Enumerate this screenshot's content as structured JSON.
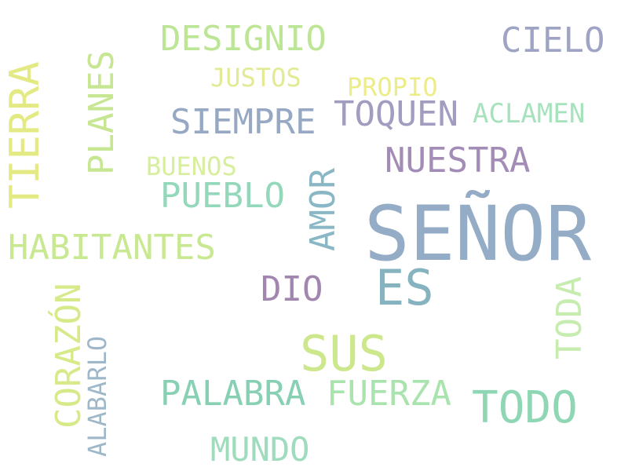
{
  "words": {
    "senor": "SEÑOR",
    "sus": "SUS",
    "es": "ES",
    "tierra": "TIERRA",
    "todo": "TODO",
    "designio": "DESIGNIO",
    "cielo": "CIELO",
    "siempre": "SIEMPRE",
    "toquen": "TOQUEN",
    "nuestra": "NUESTRA",
    "habitantes": "HABITANTES",
    "pueblo": "PUEBLO",
    "palabra": "PALABRA",
    "fuerza": "FUERZA",
    "dio": "DIO",
    "planes": "PLANES",
    "amor": "AMOR",
    "corazon": "CORAZÓN",
    "toda": "TODA",
    "mundo": "MUNDO",
    "aclamen": "ACLAMEN",
    "justos": "JUSTOS",
    "propio": "PROPIO",
    "buenos": "BUENOS",
    "alabarlo": "ALABARLO"
  },
  "colors": {
    "blue_gray": "#8fa8c2",
    "steel_blue": "#8aabbf",
    "lavender": "#9d9fc2",
    "purple": "#a08bb4",
    "mint": "#90d6b6",
    "teal_green": "#84cfb0",
    "light_green": "#c4e58f",
    "pale_green": "#b9e294",
    "yellow_green": "#d6e985",
    "yellow": "#e6ea86"
  }
}
